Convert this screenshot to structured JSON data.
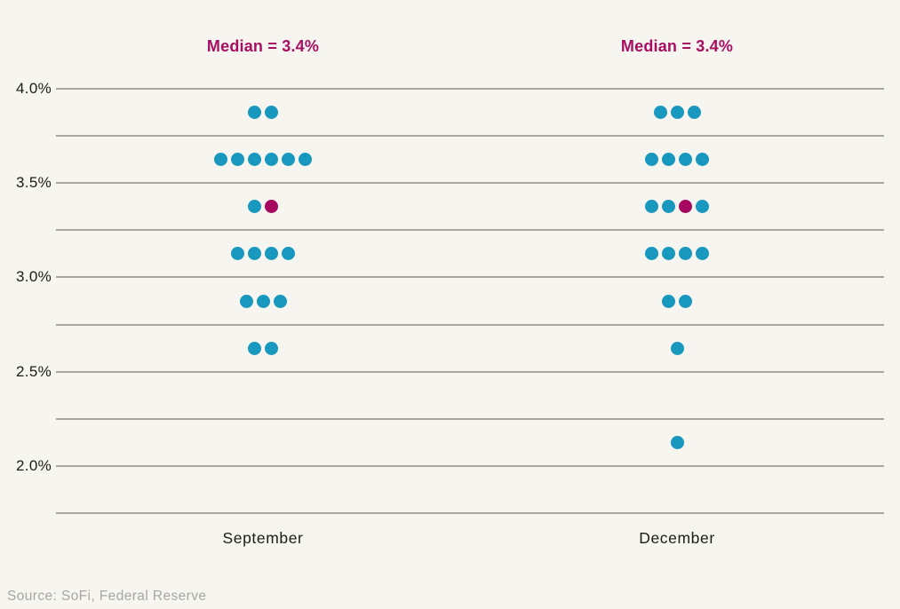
{
  "source_note": "Source: SoFi, Federal Reserve",
  "colors": {
    "background": "#f7f5f0",
    "gridline": "#aba69d",
    "dot_teal": "#1898be",
    "dot_median": "#a60861",
    "median_label_text": "#a90d62",
    "axis_text": "#1e1b16",
    "source_text": "#a7a6a3"
  },
  "chart_data": {
    "type": "scatter",
    "subtype": "fed-dot-plot",
    "title": "",
    "legend": "none",
    "grid": "horizontal-only",
    "y_axis": {
      "unit": "%",
      "top": 4.0,
      "bottom": 1.75,
      "gridline_step": 0.25,
      "tick_labels": [
        {
          "value": 4.0,
          "label": "4.0%"
        },
        {
          "value": 3.5,
          "label": "3.5%"
        },
        {
          "value": 3.0,
          "label": "3.0%"
        },
        {
          "value": 2.5,
          "label": "2.5%"
        },
        {
          "value": 2.0,
          "label": "2.0%"
        }
      ]
    },
    "columns": [
      {
        "label": "September",
        "median_label": "Median = 3.4%",
        "median_value": 3.4,
        "dot_count": 19,
        "rows": [
          {
            "value": 3.875,
            "dots": [
              "teal",
              "teal"
            ]
          },
          {
            "value": 3.625,
            "dots": [
              "teal",
              "teal",
              "teal",
              "teal",
              "teal",
              "teal"
            ]
          },
          {
            "value": 3.375,
            "dots": [
              "teal",
              "median"
            ]
          },
          {
            "value": 3.125,
            "dots": [
              "teal",
              "teal",
              "teal",
              "teal"
            ]
          },
          {
            "value": 2.875,
            "dots": [
              "teal",
              "teal",
              "teal"
            ]
          },
          {
            "value": 2.625,
            "dots": [
              "teal",
              "teal"
            ]
          }
        ]
      },
      {
        "label": "December",
        "median_label": "Median = 3.4%",
        "median_value": 3.4,
        "dot_count": 19,
        "rows": [
          {
            "value": 3.875,
            "dots": [
              "teal",
              "teal",
              "teal"
            ]
          },
          {
            "value": 3.625,
            "dots": [
              "teal",
              "teal",
              "teal",
              "teal"
            ]
          },
          {
            "value": 3.375,
            "dots": [
              "teal",
              "teal",
              "median",
              "teal"
            ]
          },
          {
            "value": 3.125,
            "dots": [
              "teal",
              "teal",
              "teal",
              "teal"
            ]
          },
          {
            "value": 2.875,
            "dots": [
              "teal",
              "teal"
            ]
          },
          {
            "value": 2.625,
            "dots": [
              "teal"
            ]
          },
          {
            "value": 2.125,
            "dots": [
              "teal"
            ]
          }
        ]
      }
    ]
  }
}
